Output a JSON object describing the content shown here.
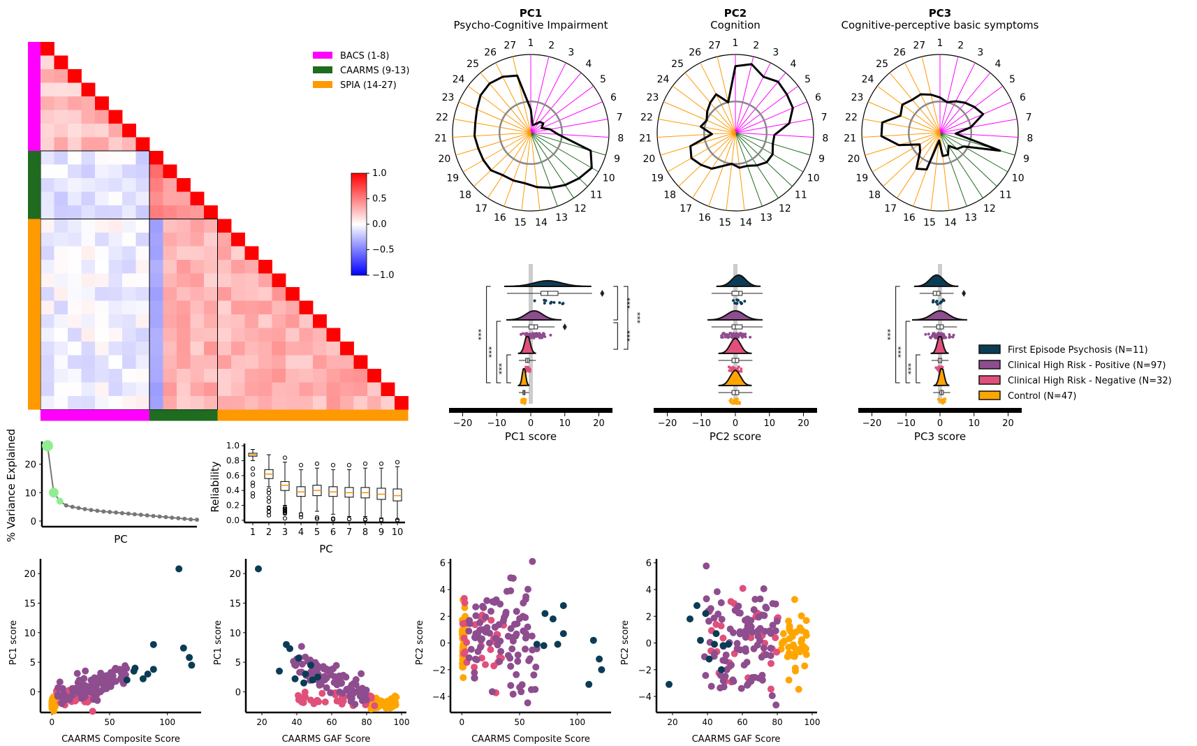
{
  "colors": {
    "bacs": "#ff00ff",
    "caarms": "#1f6b1f",
    "spia": "#ff9900",
    "fep": "#0b3c55",
    "chrp": "#8e4d8e",
    "chrn": "#e0507a",
    "control": "#ffa500",
    "neg": "#0000ff",
    "pos": "#ff0000"
  },
  "chart_data": [
    {
      "id": "correlation-matrix",
      "type": "heatmap",
      "n_items": 27,
      "groups": [
        {
          "name": "BACS (1-8)",
          "start": 1,
          "end": 8,
          "color": "#ff00ff"
        },
        {
          "name": "CAARMS (9-13)",
          "start": 9,
          "end": 13,
          "color": "#1f6b1f"
        },
        {
          "name": "SPIA (14-27)",
          "start": 14,
          "end": 27,
          "color": "#ff9900"
        }
      ],
      "block_mean_corr": {
        "bacs-bacs": 0.25,
        "caarms-caarms": 0.45,
        "spia-spia": 0.3,
        "caarms-bacs": -0.1,
        "spia-bacs": -0.05,
        "spia-caarms": 0.3
      },
      "colorbar": {
        "min": -1.0,
        "max": 1.0,
        "ticks": [
          "1.0",
          "0.5",
          "0.0",
          "−0.5",
          "−1.0"
        ]
      }
    },
    {
      "id": "radar-pc1",
      "type": "radar",
      "title": "PC1",
      "subtitle": "Psycho-Cognitive Impairment",
      "spokes": [
        "1",
        "2",
        "3",
        "4",
        "5",
        "6",
        "7",
        "8",
        "9",
        "10",
        "11",
        "12",
        "13",
        "14",
        "15",
        "16",
        "17",
        "18",
        "19",
        "20",
        "21",
        "22",
        "23",
        "24",
        "25",
        "26",
        "27"
      ],
      "values": [
        0.3,
        0.1,
        0.12,
        0.18,
        0.2,
        0.15,
        0.25,
        0.35,
        0.8,
        0.9,
        0.85,
        0.8,
        0.75,
        0.7,
        0.65,
        0.65,
        0.65,
        0.7,
        0.7,
        0.7,
        0.72,
        0.72,
        0.75,
        0.8,
        0.82,
        0.8,
        0.75
      ]
    },
    {
      "id": "radar-pc2",
      "type": "radar",
      "title": "PC2",
      "subtitle": "Cognition",
      "spokes": [
        "1",
        "2",
        "3",
        "4",
        "5",
        "6",
        "7",
        "8",
        "9",
        "10",
        "11",
        "12",
        "13",
        "14",
        "15",
        "16",
        "17",
        "18",
        "19",
        "20",
        "21",
        "22",
        "23",
        "24",
        "25",
        "26",
        "27"
      ],
      "values": [
        0.85,
        0.9,
        0.8,
        0.85,
        0.82,
        0.8,
        0.7,
        0.5,
        0.5,
        0.55,
        0.55,
        0.5,
        0.45,
        0.45,
        0.4,
        0.45,
        0.55,
        0.6,
        0.65,
        0.6,
        0.3,
        0.45,
        0.4,
        0.45,
        0.5,
        0.55,
        0.4
      ]
    },
    {
      "id": "radar-pc3",
      "type": "radar",
      "title": "PC3",
      "subtitle": "Cognitive-perceptive basic symptoms",
      "spokes": [
        "1",
        "2",
        "3",
        "4",
        "5",
        "6",
        "7",
        "8",
        "9",
        "10",
        "11",
        "12",
        "13",
        "14",
        "15",
        "16",
        "17",
        "18",
        "19",
        "20",
        "21",
        "22",
        "23",
        "24",
        "25",
        "26",
        "27"
      ],
      "values": [
        0.45,
        0.4,
        0.45,
        0.5,
        0.55,
        0.6,
        0.4,
        0.2,
        0.8,
        0.35,
        0.3,
        0.2,
        0.3,
        0.3,
        0.1,
        0.5,
        0.55,
        0.35,
        0.3,
        0.55,
        0.75,
        0.75,
        0.55,
        0.6,
        0.55,
        0.55,
        0.5
      ]
    },
    {
      "id": "raincloud-pc1",
      "type": "raincloud",
      "xlabel": "PC1 score",
      "xlim": [
        -24,
        24
      ],
      "xticks": [
        "−20",
        "−10",
        "0",
        "10",
        "20"
      ],
      "groups": [
        {
          "name": "First Episode Psychosis",
          "mean": 5,
          "sd": 4,
          "q1": 3,
          "med": 5,
          "q3": 8,
          "max": 21
        },
        {
          "name": "Clinical High Risk - Positive",
          "mean": 1,
          "sd": 2.5,
          "q1": -0.5,
          "med": 1,
          "q3": 2,
          "max": 10
        },
        {
          "name": "Clinical High Risk - Negative",
          "mean": -1,
          "sd": 0.8,
          "q1": -1.5,
          "med": -1,
          "q3": -0.5,
          "max": 1
        },
        {
          "name": "Control",
          "mean": -2,
          "sd": 0.5,
          "q1": -2.3,
          "med": -2,
          "q3": -1.7,
          "max": -1
        }
      ],
      "sig_left": [
        "***",
        "***",
        "***"
      ],
      "sig_right": [
        "***",
        "***",
        "***"
      ]
    },
    {
      "id": "raincloud-pc2",
      "type": "raincloud",
      "xlabel": "PC2 score",
      "xlim": [
        -24,
        24
      ],
      "xticks": [
        "−20",
        "−10",
        "0",
        "10",
        "20"
      ],
      "groups": [
        {
          "name": "First Episode Psychosis",
          "mean": 1,
          "sd": 2,
          "q1": -1,
          "med": 1,
          "q3": 2,
          "max": 3
        },
        {
          "name": "Clinical High Risk - Positive",
          "mean": 0,
          "sd": 2.5,
          "q1": -1,
          "med": 0,
          "q3": 2,
          "max": 6
        },
        {
          "name": "Clinical High Risk - Negative",
          "mean": 0,
          "sd": 1.5,
          "q1": -1,
          "med": 0,
          "q3": 1,
          "max": 2
        },
        {
          "name": "Control",
          "mean": 0,
          "sd": 1.5,
          "q1": -1,
          "med": 0,
          "q3": 1,
          "max": 2
        }
      ]
    },
    {
      "id": "raincloud-pc3",
      "type": "raincloud",
      "xlabel": "PC3 score",
      "xlim": [
        -24,
        24
      ],
      "xticks": [
        "−20",
        "−10",
        "0",
        "10",
        "20"
      ],
      "groups": [
        {
          "name": "First Episode Psychosis",
          "mean": -1,
          "sd": 2,
          "q1": -2,
          "med": -1,
          "q3": 0,
          "max": 7
        },
        {
          "name": "Clinical High Risk - Positive",
          "mean": 0,
          "sd": 2.5,
          "q1": -1,
          "med": 0,
          "q3": 1,
          "max": 4
        },
        {
          "name": "Clinical High Risk - Negative",
          "mean": 0,
          "sd": 0.8,
          "q1": -0.5,
          "med": 0,
          "q3": 0.5,
          "max": 1
        },
        {
          "name": "Control",
          "mean": 0.5,
          "sd": 0.7,
          "q1": 0,
          "med": 0.5,
          "q3": 1,
          "max": 1.5
        }
      ],
      "sig_left": [
        "***",
        "***",
        "***"
      ]
    },
    {
      "id": "scree",
      "type": "line",
      "ylabel": "% Variance Explained",
      "xlabel": "PC",
      "ylim": [
        0,
        28
      ],
      "yticks": [
        "0",
        "10",
        "20"
      ],
      "values": [
        26.5,
        10,
        7,
        5.5,
        5,
        4.6,
        4.2,
        3.9,
        3.6,
        3.4,
        3.2,
        3.0,
        2.8,
        2.6,
        2.4,
        2.2,
        2.0,
        1.8,
        1.6,
        1.4,
        1.2,
        1.0,
        0.8,
        0.6,
        0.5
      ]
    },
    {
      "id": "reliability",
      "type": "box",
      "ylabel": "Reliability",
      "xlabel": "PC",
      "ylim": [
        -0.03,
        1.03
      ],
      "yticks": [
        "0.0",
        "0.2",
        "0.4",
        "0.6",
        "0.8",
        "1.0"
      ],
      "categories": [
        "1",
        "2",
        "3",
        "4",
        "5",
        "6",
        "7",
        "8",
        "9",
        "10"
      ],
      "boxes": [
        {
          "q1": 0.86,
          "med": 0.88,
          "q3": 0.9,
          "wlo": 0.8,
          "whi": 0.95
        },
        {
          "q1": 0.56,
          "med": 0.62,
          "q3": 0.68,
          "wlo": 0.45,
          "whi": 0.88
        },
        {
          "q1": 0.4,
          "med": 0.47,
          "q3": 0.52,
          "wlo": 0.2,
          "whi": 0.78
        },
        {
          "q1": 0.32,
          "med": 0.38,
          "q3": 0.45,
          "wlo": 0.1,
          "whi": 0.68
        },
        {
          "q1": 0.33,
          "med": 0.4,
          "q3": 0.47,
          "wlo": 0.12,
          "whi": 0.7
        },
        {
          "q1": 0.32,
          "med": 0.38,
          "q3": 0.45,
          "wlo": 0.08,
          "whi": 0.68
        },
        {
          "q1": 0.31,
          "med": 0.37,
          "q3": 0.44,
          "wlo": 0.05,
          "whi": 0.68
        },
        {
          "q1": 0.3,
          "med": 0.37,
          "q3": 0.44,
          "wlo": 0.05,
          "whi": 0.7
        },
        {
          "q1": 0.28,
          "med": 0.35,
          "q3": 0.43,
          "wlo": 0.03,
          "whi": 0.7
        },
        {
          "q1": 0.26,
          "med": 0.33,
          "q3": 0.42,
          "wlo": 0.01,
          "whi": 0.72
        }
      ]
    },
    {
      "id": "scatter-pc1-composite",
      "type": "scatter",
      "xlabel": "CAARMS Composite Score",
      "ylabel": "PC1 score",
      "xlim": [
        -5,
        128
      ],
      "ylim": [
        -3.5,
        22.5
      ],
      "xticks": [
        "0",
        "50",
        "100"
      ],
      "yticks": [
        "0",
        "5",
        "10",
        "15",
        "20"
      ],
      "fep": [
        [
          110,
          20.8
        ],
        [
          114,
          7.4
        ],
        [
          119,
          5.8
        ],
        [
          121,
          4.5
        ],
        [
          88,
          8
        ],
        [
          88,
          3.8
        ],
        [
          72,
          4
        ],
        [
          79,
          2.2
        ],
        [
          71,
          3.5
        ],
        [
          65,
          2
        ],
        [
          83,
          3
        ]
      ]
    },
    {
      "id": "scatter-pc1-gaf",
      "type": "scatter",
      "xlabel": "CAARMS GAF Score",
      "ylabel": "PC1 score",
      "xlim": [
        14,
        102
      ],
      "ylim": [
        -3.5,
        22.5
      ],
      "xticks": [
        "20",
        "40",
        "60",
        "80",
        "100"
      ],
      "yticks": [
        "0",
        "5",
        "10",
        "15",
        "20"
      ],
      "fep": [
        [
          18,
          20.8
        ],
        [
          34,
          8
        ],
        [
          36,
          7.3
        ],
        [
          41,
          5.7
        ],
        [
          48,
          4.5
        ],
        [
          45,
          3
        ],
        [
          39,
          2.2
        ],
        [
          30,
          3.5
        ],
        [
          49,
          2
        ],
        [
          44,
          1.5
        ],
        [
          52,
          2.5
        ]
      ]
    },
    {
      "id": "scatter-pc2-composite",
      "type": "scatter",
      "xlabel": "CAARMS Composite Score",
      "ylabel": "PC2 score",
      "xlim": [
        -5,
        128
      ],
      "ylim": [
        -5.2,
        6.3
      ],
      "xticks": [
        "0",
        "50",
        "100"
      ],
      "yticks": [
        "−4",
        "−2",
        "0",
        "2",
        "4",
        "6"
      ],
      "fep": [
        [
          110,
          -3.1
        ],
        [
          114,
          0.2
        ],
        [
          119,
          -1.2
        ],
        [
          121,
          -2
        ],
        [
          88,
          2.8
        ],
        [
          88,
          0.7
        ],
        [
          72,
          2.2
        ],
        [
          79,
          1.8
        ],
        [
          71,
          -0.2
        ],
        [
          65,
          -0.1
        ],
        [
          83,
          -0.1
        ]
      ]
    },
    {
      "id": "scatter-pc2-gaf",
      "type": "scatter",
      "xlabel": "CAARMS GAF Score",
      "ylabel": "PC2 score",
      "xlim": [
        14,
        102
      ],
      "ylim": [
        -5.2,
        6.3
      ],
      "xticks": [
        "20",
        "40",
        "60",
        "80",
        "100"
      ],
      "yticks": [
        "−4",
        "−2",
        "0",
        "2",
        "4",
        "6"
      ],
      "fep": [
        [
          18,
          -3.1
        ],
        [
          34,
          2.8
        ],
        [
          36,
          0.2
        ],
        [
          41,
          -1.2
        ],
        [
          48,
          -2
        ],
        [
          45,
          0.7
        ],
        [
          39,
          2.2
        ],
        [
          30,
          1.8
        ],
        [
          49,
          -0.2
        ],
        [
          44,
          -0.1
        ],
        [
          52,
          -0.1
        ]
      ]
    }
  ],
  "legend": {
    "matrix": [
      "BACS (1-8)",
      "CAARMS (9-13)",
      "SPIA (14-27)"
    ],
    "groups": [
      "First Episode Psychosis (N=11)",
      "Clinical High Risk - Positive (N=97)",
      "Clinical High Risk - Negative (N=32)",
      "Control (N=47)"
    ]
  }
}
